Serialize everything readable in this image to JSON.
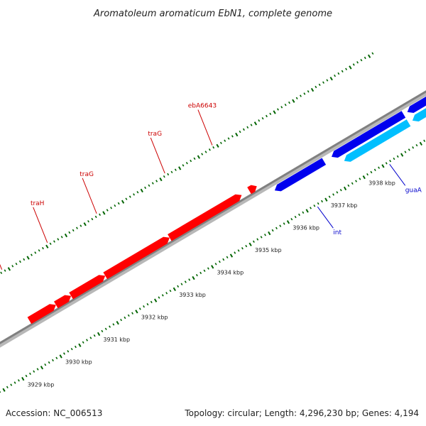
{
  "title": "Aromatoleum aromaticum EbN1, complete genome",
  "footer": {
    "accession": "Accession: NC_006513",
    "summary": "Topology: circular; Length: 4,296,230 bp; Genes: 4,194"
  },
  "colors": {
    "forward_gene": "#ff0000",
    "reverse_gene": "#0000ee",
    "reverse_gene_light": "#00bfff",
    "backbone": "#888888",
    "tick": "#006400",
    "forward_label": "#cc0000",
    "reverse_label": "#0000cc"
  },
  "scale": {
    "unit": "kbp",
    "ticks": [
      {
        "kbp": 3929,
        "label": "3929 kbp"
      },
      {
        "kbp": 3930,
        "label": "3930 kbp"
      },
      {
        "kbp": 3931,
        "label": "3931 kbp"
      },
      {
        "kbp": 3932,
        "label": "3932 kbp"
      },
      {
        "kbp": 3933,
        "label": "3933 kbp"
      },
      {
        "kbp": 3934,
        "label": "3934 kbp"
      },
      {
        "kbp": 3935,
        "label": "3935 kbp"
      },
      {
        "kbp": 3936,
        "label": "3936 kbp"
      },
      {
        "kbp": 3937,
        "label": "3937 kbp"
      },
      {
        "kbp": 3938,
        "label": "3938 kbp"
      }
    ]
  },
  "genes": [
    {
      "name": "traF",
      "strand": "+",
      "start_kbp": 3929.8,
      "end_kbp": 3930.5,
      "labeled": true
    },
    {
      "name": "",
      "strand": "+",
      "start_kbp": 3930.5,
      "end_kbp": 3930.9,
      "labeled": false
    },
    {
      "name": "traH",
      "strand": "+",
      "start_kbp": 3930.9,
      "end_kbp": 3931.8,
      "labeled": true
    },
    {
      "name": "traG",
      "strand": "+",
      "start_kbp": 3931.8,
      "end_kbp": 3933.5,
      "labeled": true
    },
    {
      "name": "traG",
      "strand": "+",
      "start_kbp": 3933.5,
      "end_kbp": 3935.4,
      "labeled": true
    },
    {
      "name": "ebA6643",
      "strand": "+",
      "start_kbp": 3935.6,
      "end_kbp": 3935.8,
      "labeled": true
    },
    {
      "name": "int",
      "strand": "-",
      "start_kbp": 3936.1,
      "end_kbp": 3937.4,
      "labeled": true
    },
    {
      "name": "",
      "strand": "-",
      "start_kbp": 3937.6,
      "end_kbp": 3939.5,
      "labeled": false
    },
    {
      "name": "",
      "strand": "-",
      "start_kbp": 3939.6,
      "end_kbp": 3941.0,
      "labeled": false
    },
    {
      "name": "guaA",
      "strand": "-",
      "start_kbp": 3937.8,
      "end_kbp": 3939.5,
      "labeled": true,
      "shade": "light"
    },
    {
      "name": "",
      "strand": "-",
      "start_kbp": 3939.6,
      "end_kbp": 3941.0,
      "labeled": false,
      "shade": "light"
    }
  ]
}
